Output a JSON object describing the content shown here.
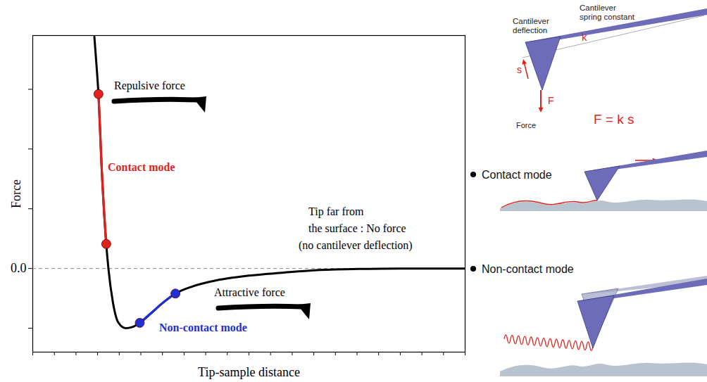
{
  "chart_data": {
    "type": "line",
    "xlabel": "Tip-sample distance",
    "ylabel": "Force",
    "color": "#000000",
    "x": [
      2.85,
      2.95,
      3.04,
      3.2,
      3.4,
      3.5,
      3.7,
      3.95,
      4.3,
      4.6,
      4.95,
      5.5,
      6.0,
      6.6,
      7.4,
      8.35,
      10,
      11.6,
      13,
      14.8,
      17,
      20
    ],
    "values": [
      3.88,
      3.4,
      2.92,
      1.6,
      0.41,
      0.0,
      -0.55,
      -0.9,
      -1.0,
      -0.98,
      -0.91,
      -0.74,
      -0.58,
      -0.42,
      -0.3,
      -0.21,
      -0.12,
      -0.07,
      -0.03,
      -0.01,
      0,
      0
    ],
    "xlim": [
      0,
      20
    ],
    "ylim": [
      -1.4,
      3.9
    ],
    "xticks": [
      0,
      1,
      2,
      3,
      4,
      5,
      6,
      7,
      8,
      9,
      10,
      11,
      12,
      13,
      14,
      15,
      16,
      17,
      18,
      19,
      20
    ],
    "yticks": [
      0
    ],
    "minor_yticks": [
      -1,
      1,
      2,
      3
    ],
    "tick_labels": "y",
    "highlights": [
      {
        "label": "Contact mode",
        "color": "#e3211c",
        "marker": "circle",
        "x": [
          3.04,
          3.2,
          3.4
        ],
        "values": [
          2.92,
          1.6,
          0.41
        ]
      },
      {
        "label": "Non-contact mode",
        "color": "#1f2fd6",
        "marker": "circle",
        "x": [
          4.95,
          5.5,
          6.0,
          6.6
        ],
        "values": [
          -0.91,
          -0.74,
          -0.58,
          -0.42
        ]
      }
    ],
    "annotations": [
      "Repulsive force",
      "Attractive force"
    ],
    "note_lines": [
      "Tip far from",
      "the surface : No force",
      "(no cantilever deflection)"
    ]
  },
  "illustration": {
    "spring_label": [
      "Cantilever",
      "spring constant"
    ],
    "spring_symbol": "k",
    "deflection_label": [
      "Cantilever",
      "deflection"
    ],
    "deflection_symbol": "s",
    "force_symbol": "F",
    "force_label": "Force",
    "formula": "F = k s",
    "modes": [
      "Contact mode",
      "Non-contact mode"
    ]
  }
}
